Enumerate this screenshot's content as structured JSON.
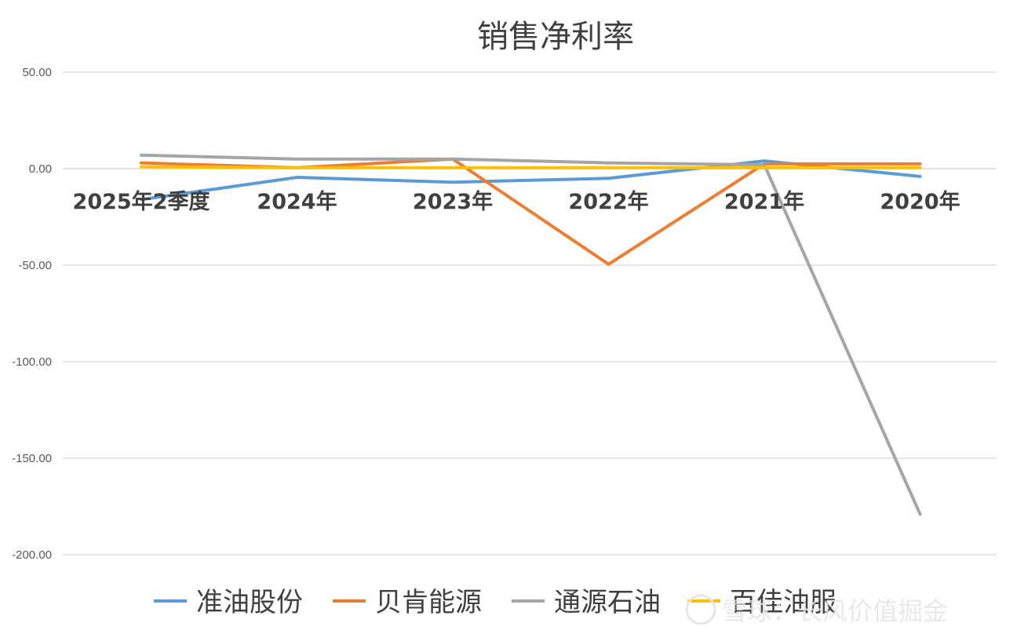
{
  "chart_data": {
    "type": "line",
    "title": "销售净利率",
    "categories": [
      "2025年2季度",
      "2024年",
      "2023年",
      "2022年",
      "2021年",
      "2020年"
    ],
    "ylim": [
      -200,
      50
    ],
    "yticks": [
      "50.00",
      "0.00",
      "-50.00",
      "-100.00",
      "-150.00",
      "-200.00"
    ],
    "ytick_values": [
      50,
      0,
      -50,
      -100,
      -150,
      -200
    ],
    "grid": true,
    "legend_position": "bottom",
    "series": [
      {
        "name": "准油股份",
        "color": "#5b9bd5",
        "values": [
          -16,
          -4.5,
          -7,
          -5,
          4,
          -4
        ]
      },
      {
        "name": "贝肯能源",
        "color": "#ed7d31",
        "values": [
          3,
          0.5,
          5,
          -49.5,
          2.5,
          2.5
        ]
      },
      {
        "name": "通源石油",
        "color": "#a5a5a5",
        "values": [
          7,
          5,
          5,
          3,
          2,
          -179
        ]
      },
      {
        "name": "百佳油服",
        "color": "#ffc000",
        "values": [
          1,
          0.5,
          0.5,
          0.5,
          0.5,
          0.5
        ]
      }
    ]
  },
  "watermark": {
    "text": "雪球：长风价值掘金"
  }
}
